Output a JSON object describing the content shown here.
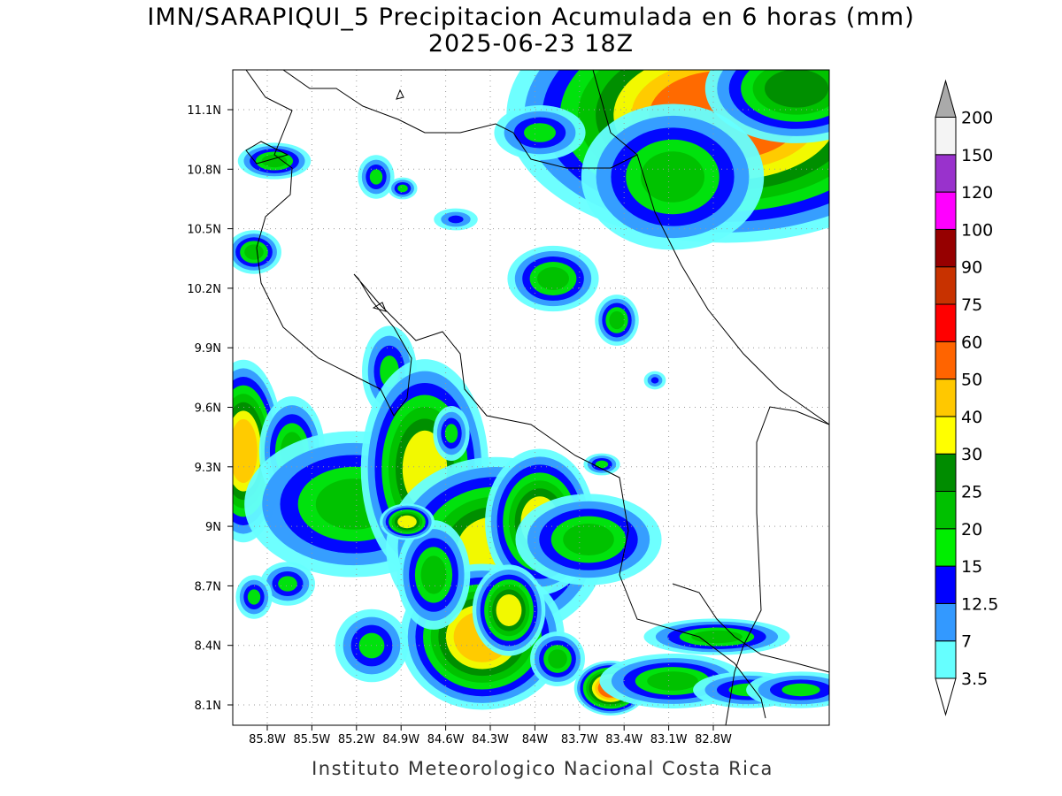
{
  "header": {
    "title": "IMN/SARAPIQUI_5 Precipitacion Acumulada en 6 horas (mm)",
    "subtitle": "2025-06-23 18Z"
  },
  "map": {
    "lon_ticks": [
      "85.8W",
      "85.5W",
      "85.2W",
      "84.9W",
      "84.6W",
      "84.3W",
      "84W",
      "83.7W",
      "83.4W",
      "83.1W",
      "82.8W"
    ],
    "lat_ticks": [
      "11.1N",
      "10.8N",
      "10.5N",
      "10.2N",
      "9.9N",
      "9.6N",
      "9.3N",
      "9N",
      "8.7N",
      "8.4N",
      "8.1N"
    ]
  },
  "colorbar": {
    "levels": [
      3.5,
      7,
      12.5,
      15,
      20,
      25,
      30,
      40,
      50,
      60,
      75,
      90,
      100,
      120,
      150,
      200
    ],
    "colors": [
      "#66ffff",
      "#3399ff",
      "#0000ff",
      "#00ee00",
      "#00c000",
      "#008c00",
      "#ffff00",
      "#ffc800",
      "#ff6400",
      "#ff0000",
      "#c83200",
      "#960000",
      "#ff00ff",
      "#9932cc",
      "#f4f4f4"
    ],
    "under_color": "#ffffff",
    "over_color": "#aaaaaa"
  },
  "footer": "Instituto Meteorologico Nacional Costa Rica"
}
